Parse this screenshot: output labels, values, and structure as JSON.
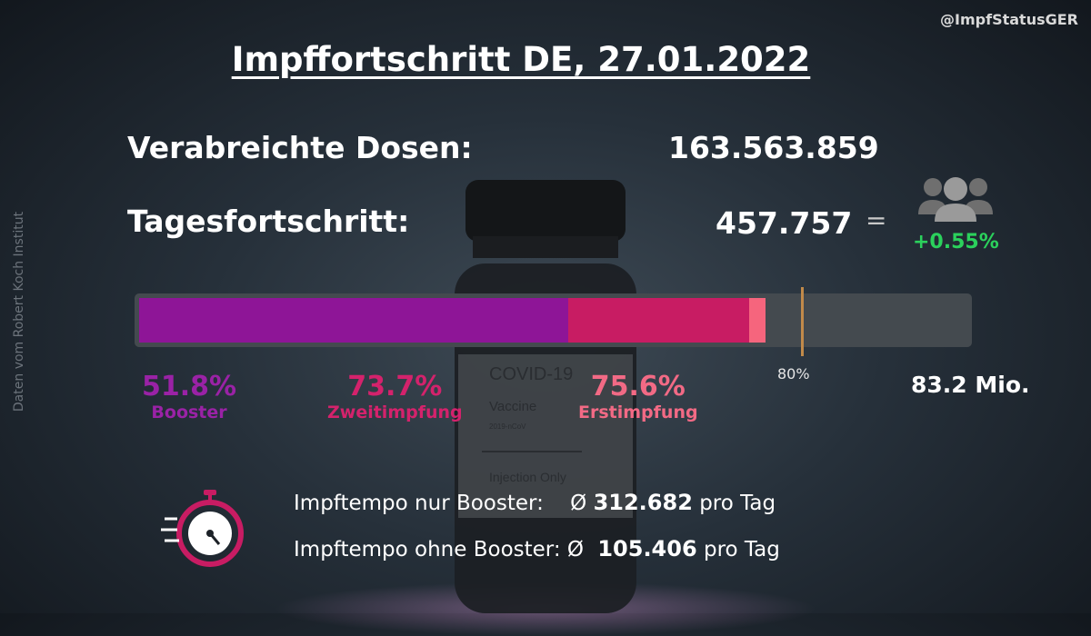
{
  "handle": "@ImpfStatusGER",
  "source": "Daten vom Robert Koch Institut",
  "title": "Impffortschritt DE, 27.01.2022",
  "doses": {
    "label": "Verabreichte Dosen:",
    "value": "163.563.859"
  },
  "daily": {
    "label": "Tagesfortschritt:",
    "value": "457.757",
    "equals": "=",
    "percent": "+0.55%",
    "icon": "people-icon"
  },
  "chart_data": {
    "type": "bar",
    "orientation": "horizontal-stacked-progress",
    "unit": "% of population",
    "population_label": "83.2 Mio.",
    "target": {
      "value": 80,
      "label": "80%",
      "color": "#c28a4a"
    },
    "series": [
      {
        "name": "Booster",
        "value": 51.8,
        "value_label": "51.8%",
        "color": "#8e1597",
        "text_color": "#9a22a6"
      },
      {
        "name": "Zweitimpfung",
        "value": 73.7,
        "value_label": "73.7%",
        "color": "#c81c63",
        "text_color": "#d4226c"
      },
      {
        "name": "Erstimpfung",
        "value": 75.6,
        "value_label": "75.6%",
        "color": "#f6657d",
        "text_color": "#f26a85"
      }
    ],
    "xlim": [
      0,
      100
    ]
  },
  "tempo": {
    "icon": "stopwatch-icon",
    "booster": {
      "label": "Impftempo nur Booster:",
      "avg": "Ø",
      "value": "312.682",
      "unit": "pro Tag"
    },
    "other": {
      "label": "Impftempo ohne Booster:",
      "avg": "Ø",
      "value": "105.406",
      "unit": "pro Tag"
    }
  }
}
